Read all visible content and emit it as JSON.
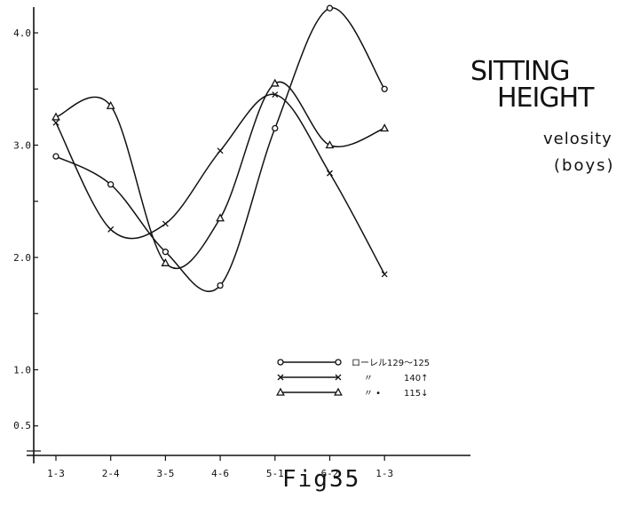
{
  "title": {
    "line1": "SITTING",
    "line2": "HEIGHT",
    "line3": "velosity",
    "line4": "(boys)"
  },
  "figure_label": "Fig35",
  "chart_data": {
    "type": "line",
    "categories": [
      "1-3",
      "2-4",
      "3-5",
      "4-6",
      "5-1",
      "6-2",
      "1-3"
    ],
    "y_ticks": [
      "0.5",
      "1.0",
      "2.0",
      "3.0",
      "4.0"
    ],
    "grid": false,
    "legend_position": "bottom-right",
    "series": [
      {
        "name": "ローレル129〜125",
        "legend_mark": "\"",
        "legend_value": "",
        "marker": "circle",
        "values": [
          2.9,
          2.65,
          2.05,
          1.75,
          3.15,
          4.22,
          3.5
        ]
      },
      {
        "name": "",
        "legend_mark": "〃",
        "legend_value": "140↑",
        "marker": "x",
        "values": [
          3.2,
          2.25,
          2.3,
          2.95,
          3.45,
          2.75,
          1.85
        ]
      },
      {
        "name": "",
        "legend_mark": "〃 •",
        "legend_value": "115↓",
        "marker": "triangle",
        "values": [
          3.25,
          3.35,
          1.95,
          2.35,
          3.55,
          3.0,
          3.15
        ]
      }
    ]
  }
}
